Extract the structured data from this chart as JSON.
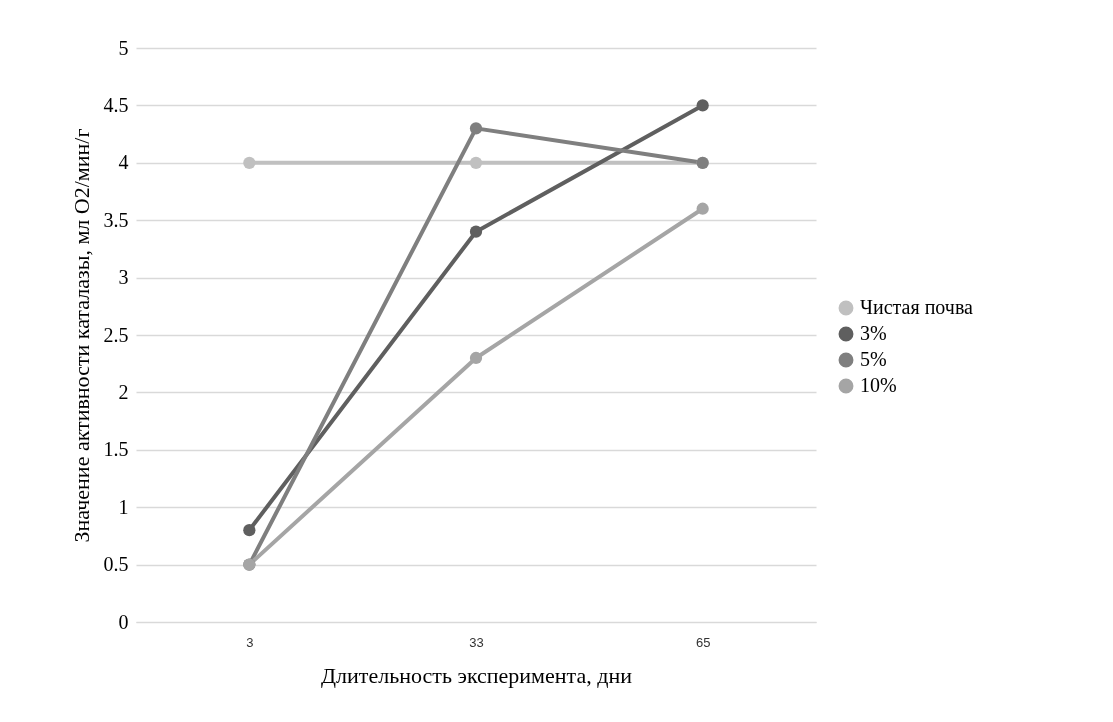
{
  "chart_data": {
    "type": "line",
    "xlabel": "Длительность эксперимента, дни",
    "ylabel": "Значение активности каталазы, мл O2/мин/г",
    "categories": [
      "3",
      "33",
      "65"
    ],
    "series": [
      {
        "name": "Чистая почва",
        "color": "#c0c0c0",
        "values": [
          4,
          4,
          4
        ]
      },
      {
        "name": "3%",
        "color": "#5f5f5f",
        "values": [
          0.8,
          3.4,
          4.5
        ]
      },
      {
        "name": "5%",
        "color": "#7f7f7f",
        "values": [
          0.5,
          4.3,
          4
        ]
      },
      {
        "name": "10%",
        "color": "#a5a5a5",
        "values": [
          0.5,
          2.3,
          3.6
        ]
      }
    ],
    "ylim": [
      0,
      5
    ],
    "yticks": [
      0,
      0.5,
      1,
      1.5,
      2,
      2.5,
      3,
      3.5,
      4,
      4.5,
      5
    ],
    "grid": "y",
    "legend": "right",
    "marker": "circle",
    "line_style": "solid"
  }
}
